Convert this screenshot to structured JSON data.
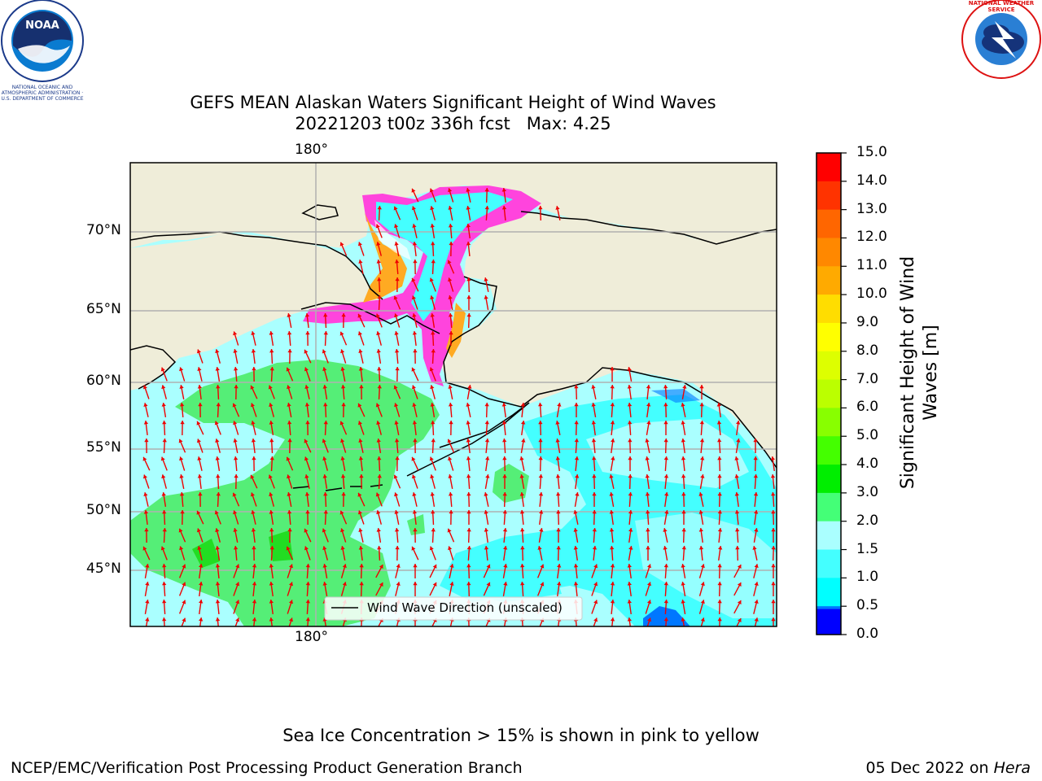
{
  "logos": {
    "left": {
      "name": "NOAA",
      "ring_text": "NATIONAL OCEANIC AND ATMOSPHERIC ADMINISTRATION · U.S. DEPARTMENT OF COMMERCE"
    },
    "right": {
      "ring_text": "NATIONAL WEATHER SERVICE"
    }
  },
  "title": {
    "line1": "GEFS MEAN Alaskan Waters Significant Height of Wind Waves",
    "line2": "20221203 t00z 336h fcst   Max: 4.25"
  },
  "map": {
    "top_lon_label": "180°",
    "bottom_lon_label": "180°",
    "lat_labels": [
      "70°N",
      "65°N",
      "60°N",
      "55°N",
      "50°N",
      "45°N"
    ],
    "legend": "Wind Wave Direction (unscaled)"
  },
  "colorbar": {
    "label": "Significant Height of Wind Waves [m]",
    "ticks": [
      "15.0",
      "14.0",
      "13.0",
      "12.0",
      "11.0",
      "10.0",
      "9.0",
      "8.0",
      "7.0",
      "6.0",
      "5.0",
      "4.0",
      "3.0",
      "2.0",
      "1.5",
      "1.0",
      "0.5",
      "0.0"
    ],
    "colors": [
      "#ff0000",
      "#ff3300",
      "#ff6600",
      "#ff8800",
      "#ffaa00",
      "#ffdd00",
      "#ffff00",
      "#ddff00",
      "#bbff00",
      "#88ff00",
      "#44ff00",
      "#00ee00",
      "#44ff77",
      "#aaffff",
      "#44ffff",
      "#00ffff",
      "#0077ff",
      "#0000ff"
    ]
  },
  "colors": {
    "land": "#efedd9",
    "ocean_light": "#aaffff",
    "ocean_cyan": "#44ffff",
    "waves_green": "#55ee77",
    "ice_pink": "#ff44dd",
    "ice_orange": "#ffaa22",
    "arrow": "#ee0000"
  },
  "footer": {
    "note": "Sea Ice Concentration > 15% is shown in pink to yellow",
    "left": "NCEP/EMC/Verification Post Processing Product Generation Branch",
    "date": "05 Dec 2022 on ",
    "host": "Hera"
  }
}
